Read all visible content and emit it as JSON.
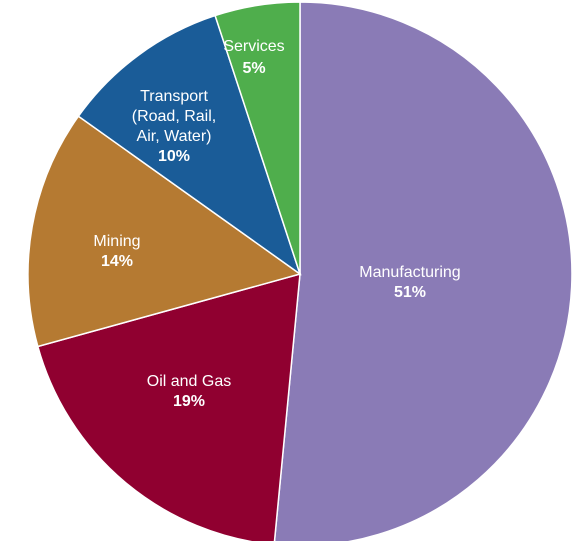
{
  "chart_data": {
    "type": "pie",
    "title": "",
    "slices": [
      {
        "label_lines": [
          "Manufacturing"
        ],
        "value": 51,
        "value_label": "51%",
        "color": "#8a7bb6"
      },
      {
        "label_lines": [
          "Oil and Gas"
        ],
        "value": 19,
        "value_label": "19%",
        "color": "#900030"
      },
      {
        "label_lines": [
          "Mining"
        ],
        "value": 14,
        "value_label": "14%",
        "color": "#b57a32"
      },
      {
        "label_lines": [
          "Transport",
          "(Road, Rail,",
          "Air, Water)"
        ],
        "value": 10,
        "value_label": "10%",
        "color": "#1a5c98"
      },
      {
        "label_lines": [
          "Services"
        ],
        "value": 5,
        "value_label": "5%",
        "color": "#4fae4c"
      }
    ],
    "start_angle_deg": 0,
    "direction": "clockwise",
    "legend": "none"
  }
}
